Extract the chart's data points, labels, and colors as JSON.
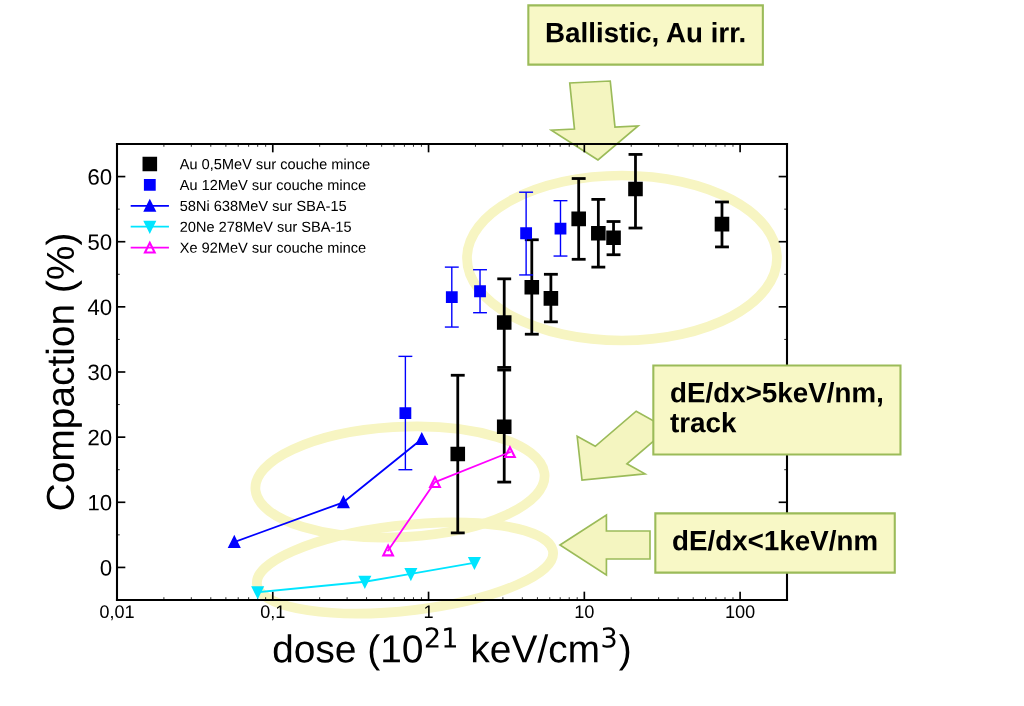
{
  "chart_data": {
    "type": "scatter",
    "xlabel": "dose (10$^{21}$ keV/cm$^{3}$)",
    "ylabel": "Compaction (%)",
    "log": "x",
    "xlim": [
      0.01,
      200
    ],
    "xticks": [
      {
        "value": 0.01,
        "label": "0,01"
      },
      {
        "value": 0.1,
        "label": "0,1"
      },
      1,
      10,
      100
    ],
    "ylim": [
      -5,
      65
    ],
    "yticks": [
      0,
      10,
      20,
      30,
      40,
      50,
      60
    ],
    "grid": false,
    "legend": "top left",
    "series": [
      {
        "name": "Au 0,5MeV sur couche mince",
        "marker": "square",
        "color": "#000000",
        "x": [
          1.54,
          3.06,
          3.06,
          4.6,
          6.1,
          9.2,
          12.3,
          15.4,
          21.3,
          76.5
        ],
        "values": [
          17.4,
          21.6,
          37.6,
          43.0,
          41.3,
          53.5,
          51.3,
          50.6,
          58.1,
          52.7
        ],
        "errors": [
          [
            5.3,
            29.5
          ],
          [
            13.1,
            30.3
          ],
          [
            30.7,
            44.3
          ],
          [
            35.8,
            50.3
          ],
          [
            37.7,
            45.0
          ],
          [
            47.3,
            59.7
          ],
          [
            46.1,
            56.5
          ],
          [
            48.0,
            53.1
          ],
          [
            52.1,
            63.4
          ],
          [
            49.2,
            56.1
          ]
        ]
      },
      {
        "name": "Au 12MeV sur couche mince",
        "marker": "square",
        "color": "#0000ff",
        "x": [
          0.71,
          1.41,
          2.14,
          4.23,
          7.03
        ],
        "values": [
          23.7,
          41.5,
          42.4,
          51.3,
          52.0
        ],
        "errors": [
          [
            15.0,
            32.4
          ],
          [
            36.9,
            46.1
          ],
          [
            39.1,
            45.7
          ],
          [
            44.9,
            57.6
          ],
          [
            47.8,
            56.3
          ]
        ]
      },
      {
        "name": "58Ni 638MeV sur SBA-15",
        "type": "line",
        "marker": "triangle",
        "color": "#0000ff",
        "x": [
          0.0566,
          0.284,
          0.905
        ],
        "values": [
          3.9,
          10.0,
          19.7
        ]
      },
      {
        "name": "20Ne 278MeV sur SBA-15",
        "type": "line",
        "marker": "triangle_down",
        "color": "#00e5ff",
        "x": [
          0.08,
          0.39,
          0.77,
          1.97
        ],
        "values": [
          -3.8,
          -2.2,
          -1.0,
          0.7
        ]
      },
      {
        "name": "Xe 92MeV sur couche mince",
        "type": "line",
        "marker": "triangle_open",
        "color": "#ff00ff",
        "x": [
          0.55,
          1.1,
          3.33
        ],
        "values": [
          2.6,
          13.1,
          17.7
        ]
      }
    ],
    "annotations": [
      "Ballistic, Au irr.",
      "dE/dx>5keV/nm,\ntrack",
      "dE/dx<1keV/nm"
    ]
  }
}
